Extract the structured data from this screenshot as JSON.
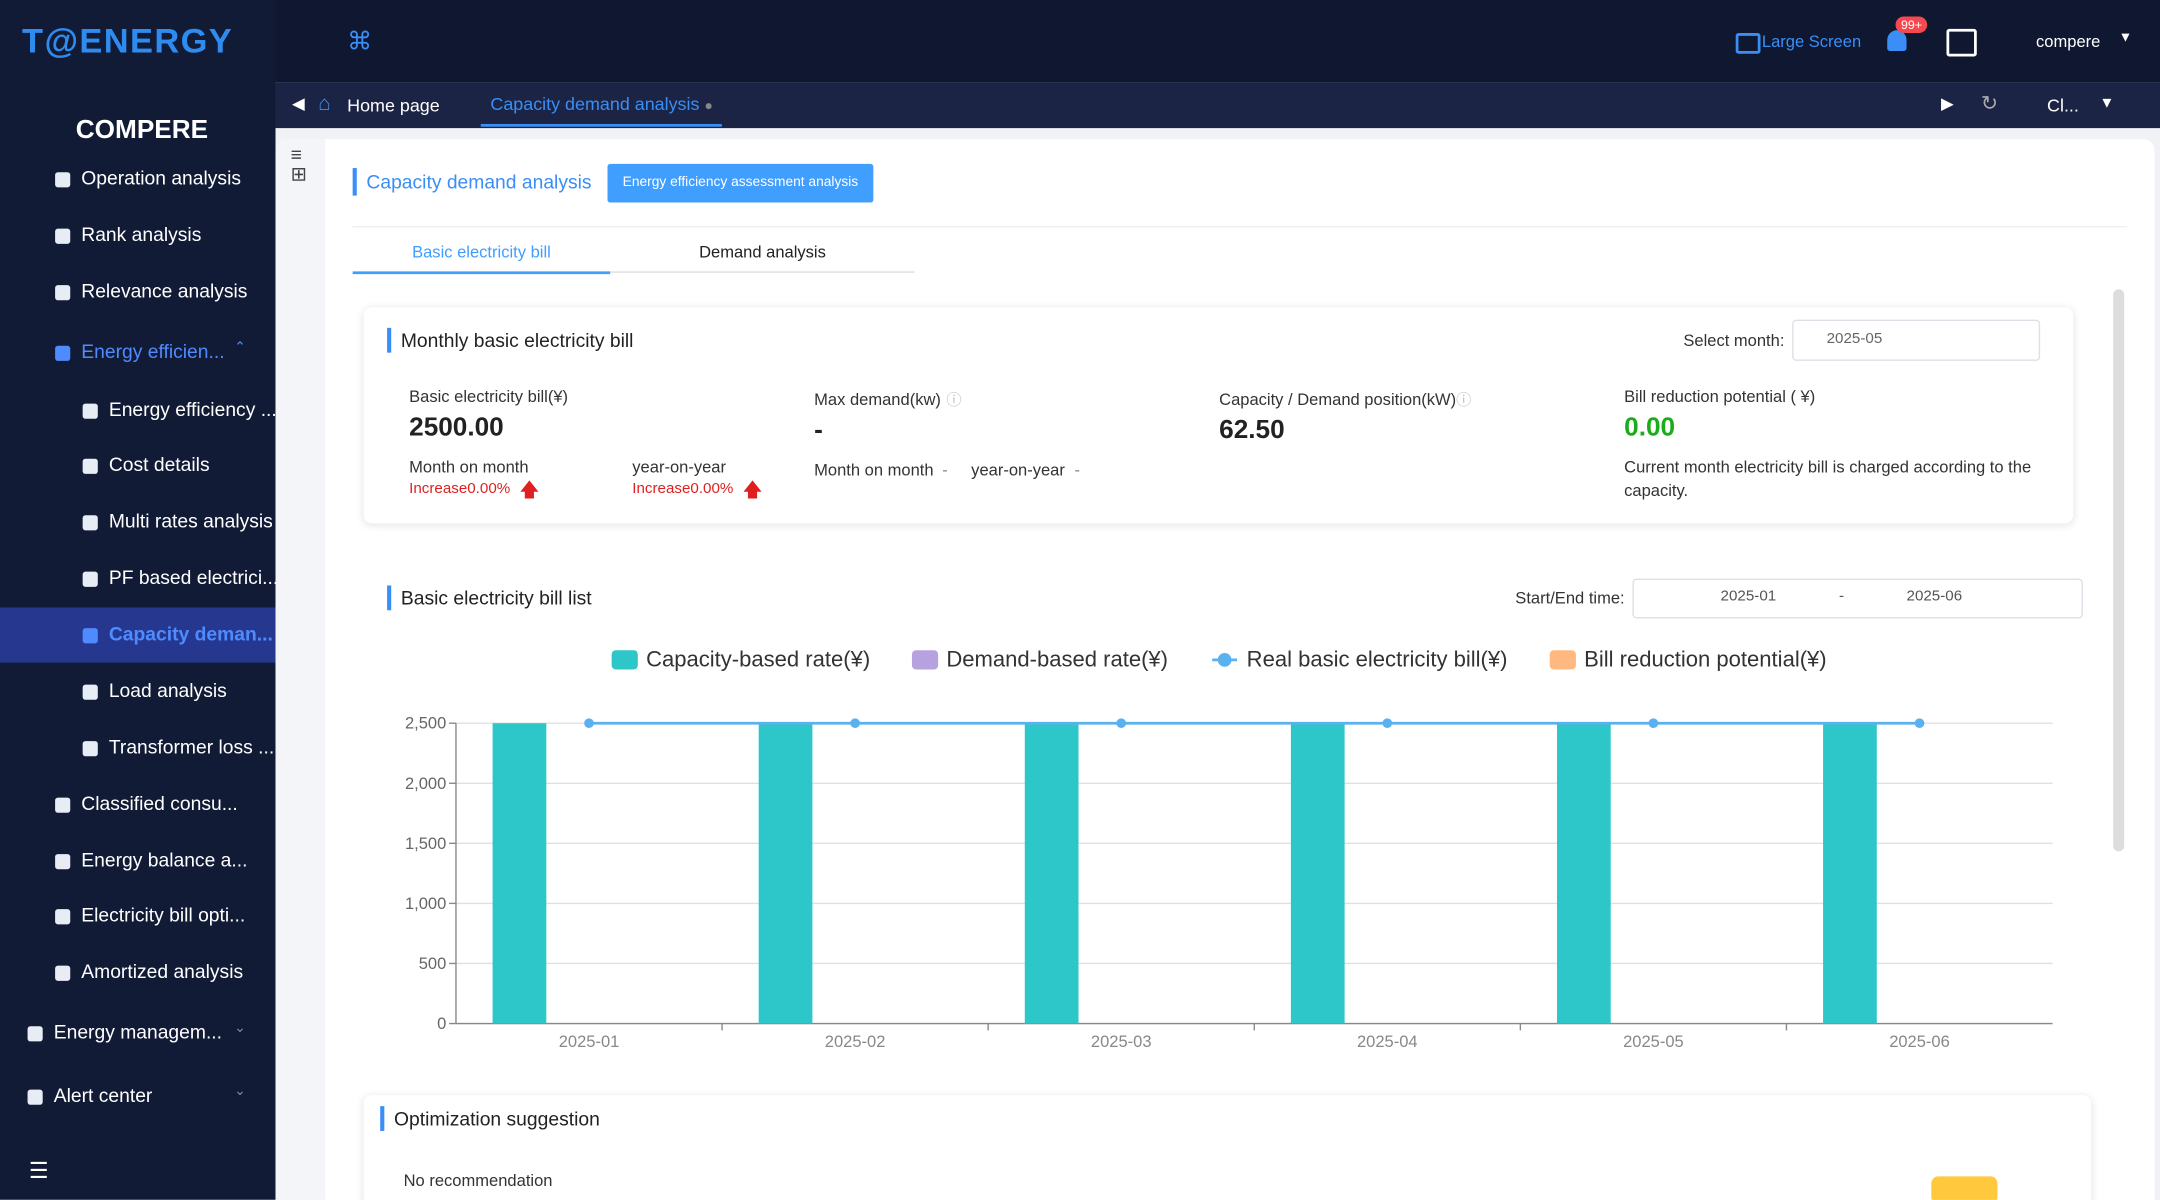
{
  "header": {
    "logo": "T@ENERGY",
    "large_screen": "Large Screen",
    "badge": "99+",
    "user": "compere"
  },
  "sidebar": {
    "title": "COMPERE",
    "items": [
      "Operation analysis",
      "Rank analysis",
      "Relevance analysis",
      "Energy efficien...",
      "Energy efficiency ...",
      "Cost details",
      "Multi rates analysis",
      "PF based electrici...",
      "Capacity deman...",
      "Load analysis",
      "Transformer loss ...",
      "Classified consu...",
      "Energy balance a...",
      "Electricity bill opti...",
      "Amortized analysis",
      "Energy managem...",
      "Alert center"
    ]
  },
  "tabs": [
    "Home page",
    "Capacity demand analysis",
    "Cl..."
  ],
  "page": {
    "title": "Capacity demand analysis",
    "button": "Energy efficiency assessment analysis",
    "subtabs": [
      "Basic electricity bill",
      "Demand analysis"
    ]
  },
  "monthly": {
    "title": "Monthly basic electricity bill",
    "select_label": "Select month:",
    "select_value": "2025-05",
    "metrics": [
      {
        "label": "Basic electricity bill(¥)",
        "value": "2500.00",
        "mom_label": "Month on month",
        "mom": "Increase0.00%",
        "yoy_label": "year-on-year",
        "yoy": "Increase0.00%"
      },
      {
        "label": "Max demand(kw)",
        "value": "-",
        "mom_label": "Month on month",
        "mom": "-",
        "yoy_label": "year-on-year",
        "yoy": "-"
      },
      {
        "label": "Capacity / Demand position(kW)",
        "value": "62.50"
      },
      {
        "label": "Bill reduction potential ( ¥)",
        "value": "0.00",
        "note": "Current month electricity bill is charged according to the capacity."
      }
    ]
  },
  "list": {
    "title": "Basic electricity bill list",
    "time_label": "Start/End time:",
    "start": "2025-01",
    "separator": "-",
    "end": "2025-06"
  },
  "chart_data": {
    "type": "bar",
    "categories": [
      "2025-01",
      "2025-02",
      "2025-03",
      "2025-04",
      "2025-05",
      "2025-06"
    ],
    "series": [
      {
        "name": "Capacity-based rate(¥)",
        "color": "#2ec7c9",
        "type": "bar",
        "values": [
          2500,
          2500,
          2500,
          2500,
          2500,
          2500
        ]
      },
      {
        "name": "Demand-based rate(¥)",
        "color": "#b6a2de",
        "type": "bar",
        "values": [
          0,
          0,
          0,
          0,
          0,
          0
        ]
      },
      {
        "name": "Real basic electricity bill(¥)",
        "color": "#5ab1ef",
        "type": "line",
        "values": [
          2500,
          2500,
          2500,
          2500,
          2500,
          2500
        ]
      },
      {
        "name": "Bill reduction potential(¥)",
        "color": "#ffb980",
        "type": "bar",
        "values": [
          0,
          0,
          0,
          0,
          0,
          0
        ]
      }
    ],
    "ylim": [
      0,
      2500
    ],
    "yticks": [
      0,
      500,
      {
        "value": 1000,
        "label": "1,000"
      },
      {
        "value": 1500,
        "label": "1,500"
      },
      {
        "value": 2000,
        "label": "2,000"
      },
      {
        "value": 2500,
        "label": "2,500"
      }
    ],
    "grid": true
  },
  "optimization": {
    "title": "Optimization suggestion",
    "text": "No recommendation"
  }
}
